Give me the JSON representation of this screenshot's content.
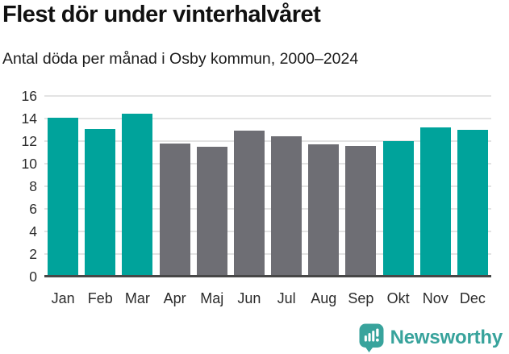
{
  "header": {
    "title": "Flest dör under vinterhalvåret",
    "subtitle": "Antal döda per månad i Osby kommun, 2000–2024"
  },
  "chart_data": {
    "type": "bar",
    "title": "Flest dör under vinterhalvåret",
    "subtitle": "Antal döda per månad i Osby kommun, 2000–2024",
    "categories": [
      "Jan",
      "Feb",
      "Mar",
      "Apr",
      "Maj",
      "Jun",
      "Jul",
      "Aug",
      "Sep",
      "Okt",
      "Nov",
      "Dec"
    ],
    "values": [
      14.1,
      13.1,
      14.4,
      11.8,
      11.5,
      12.9,
      12.4,
      11.7,
      11.6,
      12.0,
      13.2,
      13.0
    ],
    "bar_colors": [
      "teal",
      "teal",
      "teal",
      "gray",
      "gray",
      "gray",
      "gray",
      "gray",
      "gray",
      "teal",
      "teal",
      "teal"
    ],
    "colors": {
      "teal": "#00A39B",
      "gray": "#6E6E74"
    },
    "xlabel": "",
    "ylabel": "",
    "ylim": [
      0,
      16
    ],
    "yticks": [
      0,
      2,
      4,
      6,
      8,
      10,
      12,
      14,
      16
    ],
    "grid": true,
    "gridline_color": "#e3e3e3",
    "axis_line_color": "#474747",
    "legend": "none"
  },
  "footer": {
    "brand": "Newsworthy",
    "brand_color": "#38A39C"
  }
}
